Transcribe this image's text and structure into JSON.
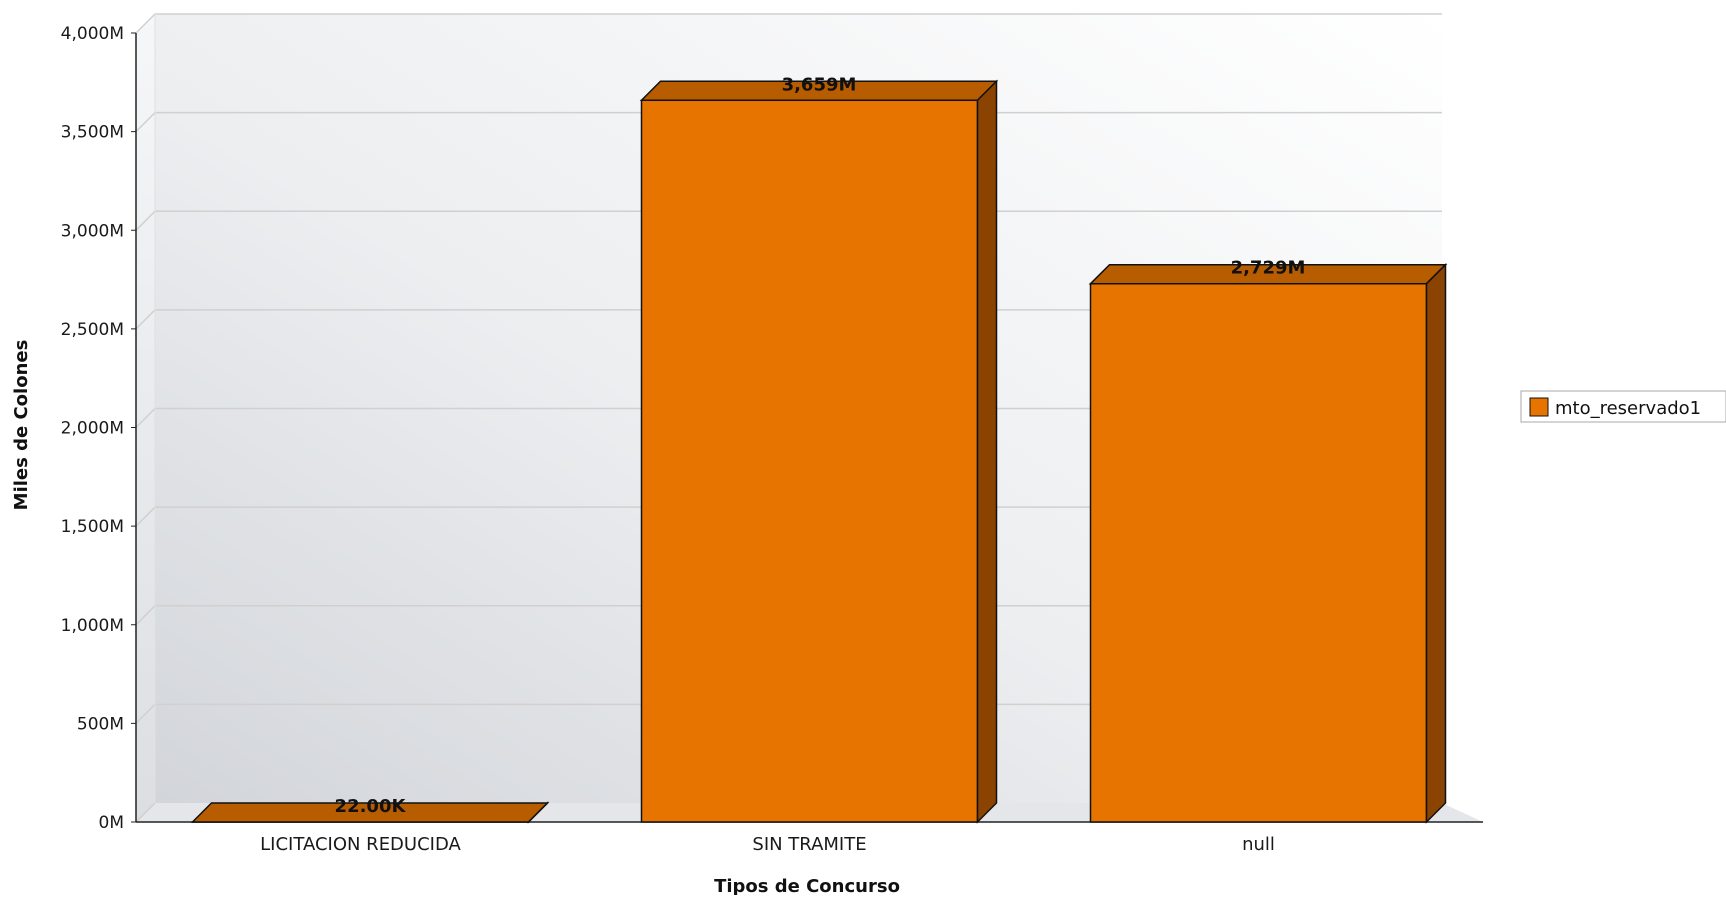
{
  "chart_data": {
    "type": "bar",
    "style": "3d",
    "categories": [
      "LICITACION REDUCIDA",
      "SIN TRAMITE",
      "null"
    ],
    "series": [
      {
        "name": "mto_reservado1",
        "values": [
          0.022,
          3659,
          2729
        ],
        "value_labels": [
          "22.00K",
          "3,659M",
          "2,729M"
        ],
        "color": "#e87400",
        "top_color": "#b85c00",
        "side_color": "#8a4300"
      }
    ],
    "xlabel": "Tipos de Concurso",
    "ylabel": "Miles de Colones",
    "ylim": [
      0,
      4000
    ],
    "y_ticks": [
      0,
      500,
      1000,
      1500,
      2000,
      2500,
      3000,
      3500,
      4000
    ],
    "y_tick_labels": [
      "0M",
      "500M",
      "1,000M",
      "1,500M",
      "2,000M",
      "2,500M",
      "3,000M",
      "3,500M",
      "4,000M"
    ],
    "grid": true,
    "legend_position": "right"
  }
}
